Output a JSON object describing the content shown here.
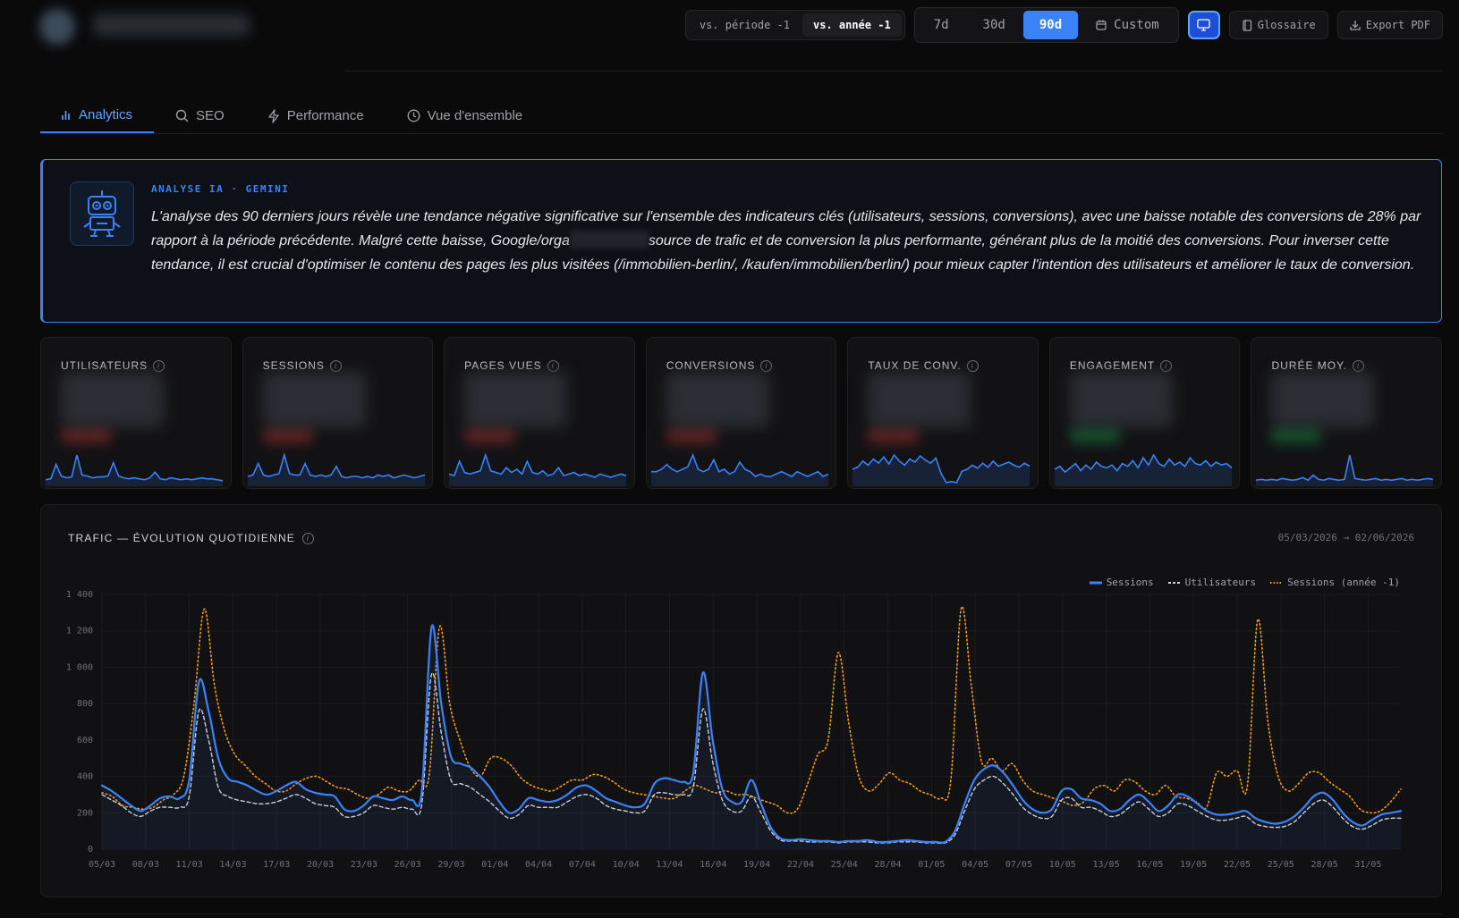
{
  "header": {
    "compare": {
      "prev_period": "vs. période -1",
      "prev_year": "vs. année -1"
    },
    "ranges": [
      "7d",
      "30d",
      "90d"
    ],
    "custom_label": "Custom",
    "glossary_label": "Glossaire",
    "export_label": "Export PDF"
  },
  "tabs": [
    {
      "label": "Analytics",
      "icon": "bar-chart-icon"
    },
    {
      "label": "SEO",
      "icon": "search-icon"
    },
    {
      "label": "Performance",
      "icon": "bolt-icon"
    },
    {
      "label": "Vue d'ensemble",
      "icon": "clock-icon"
    }
  ],
  "ai": {
    "label": "ANALYSE IA · GEMINI",
    "text_a": "L'analyse des 90 derniers jours révèle une tendance négative significative sur l'ensemble des indicateurs clés (utilisateurs, sessions, conversions), avec une baisse notable des conversions de 28% par rapport à la période précédente. Malgré cette baisse, Google/orga",
    "text_b": "source de trafic et de conversion la plus performante, générant plus de la moitié des conversions. Pour inverser cette tendance, il est crucial d'optimiser le contenu des pages les plus visitées (/immobilien-berlin/, /kaufen/immobilien/berlin/) pour mieux capter l'intention des utilisateurs et améliorer le taux de conversion."
  },
  "kpis": [
    {
      "title": "UTILISATEURS",
      "trend_color": "#ef4444"
    },
    {
      "title": "SESSIONS",
      "trend_color": "#ef4444"
    },
    {
      "title": "PAGES VUES",
      "trend_color": "#ef4444"
    },
    {
      "title": "CONVERSIONS",
      "trend_color": "#ef4444"
    },
    {
      "title": "TAUX DE CONV.",
      "trend_color": "#ef4444"
    },
    {
      "title": "ENGAGEMENT",
      "trend_color": "#22c55e"
    },
    {
      "title": "DURÉE MOY.",
      "trend_color": "#22c55e"
    }
  ],
  "colors": {
    "accent": "#3b82f6",
    "sessions": "#3b82f6",
    "users": "#d4d4d8",
    "prev_year": "#f59e0b"
  },
  "chart": {
    "title": "TRAFIC — ÉVOLUTION QUOTIDIENNE",
    "range": "05/03/2026 → 02/06/2026"
  },
  "chart_data": {
    "type": "line",
    "title": "TRAFIC — ÉVOLUTION QUOTIDIENNE",
    "ylim": [
      0,
      1400
    ],
    "yticks": [
      0,
      200,
      400,
      600,
      800,
      1000,
      1200,
      1400
    ],
    "ytick_labels": [
      "0",
      "200",
      "400",
      "600",
      "800",
      "1 000",
      "1 200",
      "1 400"
    ],
    "xtick_labels": [
      "05/03",
      "08/03",
      "11/03",
      "14/03",
      "17/03",
      "20/03",
      "23/03",
      "26/03",
      "29/03",
      "01/04",
      "04/04",
      "07/04",
      "10/04",
      "13/04",
      "16/04",
      "19/04",
      "22/04",
      "25/04",
      "28/04",
      "01/05",
      "04/05",
      "07/05",
      "10/05",
      "13/05",
      "16/05",
      "19/05",
      "22/05",
      "25/05",
      "28/05",
      "31/05"
    ],
    "grid": true,
    "legend_position": "top-right",
    "series": [
      {
        "name": "Sessions",
        "style": "solid",
        "values": [
          350,
          320,
          280,
          240,
          210,
          240,
          280,
          290,
          280,
          380,
          920,
          760,
          500,
          390,
          370,
          350,
          320,
          300,
          320,
          350,
          370,
          330,
          310,
          300,
          290,
          220,
          210,
          240,
          290,
          280,
          270,
          290,
          270,
          320,
          1220,
          800,
          510,
          470,
          450,
          400,
          340,
          260,
          200,
          220,
          280,
          270,
          260,
          270,
          300,
          340,
          350,
          320,
          280,
          260,
          240,
          230,
          250,
          360,
          390,
          380,
          370,
          420,
          970,
          600,
          330,
          260,
          260,
          380,
          250,
          120,
          60,
          50,
          55,
          50,
          45,
          45,
          40,
          45,
          45,
          50,
          40,
          40,
          45,
          50,
          45,
          40,
          40,
          40,
          100,
          250,
          380,
          440,
          460,
          420,
          350,
          270,
          220,
          200,
          220,
          320,
          330,
          280,
          270,
          250,
          210,
          220,
          270,
          300,
          260,
          210,
          240,
          300,
          290,
          250,
          210,
          190,
          190,
          200,
          210,
          170,
          150,
          140,
          150,
          180,
          230,
          290,
          310,
          270,
          200,
          150,
          130,
          160,
          190,
          200,
          210
        ]
      },
      {
        "name": "Utilisateurs",
        "style": "dashed",
        "values": [
          300,
          270,
          240,
          200,
          180,
          210,
          230,
          230,
          230,
          290,
          760,
          600,
          340,
          290,
          270,
          260,
          250,
          250,
          260,
          280,
          300,
          280,
          250,
          240,
          230,
          180,
          180,
          200,
          240,
          230,
          220,
          230,
          220,
          250,
          960,
          640,
          380,
          360,
          340,
          300,
          260,
          210,
          170,
          190,
          240,
          230,
          230,
          230,
          260,
          290,
          300,
          280,
          240,
          220,
          210,
          200,
          210,
          300,
          310,
          300,
          300,
          340,
          770,
          480,
          270,
          210,
          210,
          290,
          200,
          100,
          50,
          45,
          45,
          40,
          40,
          40,
          35,
          40,
          40,
          40,
          35,
          35,
          40,
          40,
          40,
          35,
          35,
          35,
          80,
          210,
          330,
          380,
          400,
          360,
          300,
          230,
          190,
          170,
          180,
          270,
          280,
          230,
          230,
          210,
          180,
          190,
          230,
          260,
          220,
          180,
          200,
          250,
          240,
          210,
          180,
          160,
          160,
          170,
          180,
          140,
          125,
          120,
          125,
          150,
          200,
          250,
          270,
          230,
          170,
          125,
          110,
          130,
          160,
          170,
          170
        ]
      },
      {
        "name": "Sessions (année -1)",
        "style": "dotted",
        "values": [
          310,
          290,
          240,
          230,
          220,
          230,
          270,
          300,
          400,
          800,
          1320,
          900,
          650,
          520,
          460,
          400,
          360,
          320,
          320,
          360,
          390,
          400,
          370,
          340,
          330,
          300,
          280,
          300,
          340,
          320,
          320,
          380,
          410,
          1220,
          800,
          600,
          450,
          400,
          500,
          500,
          460,
          390,
          350,
          330,
          320,
          350,
          380,
          380,
          410,
          400,
          370,
          330,
          310,
          300,
          290,
          280,
          280,
          320,
          350,
          330,
          310,
          320,
          300,
          300,
          280,
          260,
          240,
          200,
          220,
          360,
          520,
          600,
          1080,
          700,
          400,
          320,
          360,
          420,
          380,
          360,
          320,
          300,
          280,
          380,
          1320,
          900,
          480,
          500,
          430,
          470,
          380,
          320,
          300,
          280,
          260,
          240,
          260,
          330,
          350,
          320,
          380,
          370,
          320,
          300,
          350,
          290,
          280,
          260,
          230,
          420,
          400,
          430,
          350,
          1260,
          700,
          400,
          320,
          360,
          420,
          420,
          370,
          330,
          290,
          220,
          200,
          210,
          260,
          330
        ]
      }
    ]
  }
}
